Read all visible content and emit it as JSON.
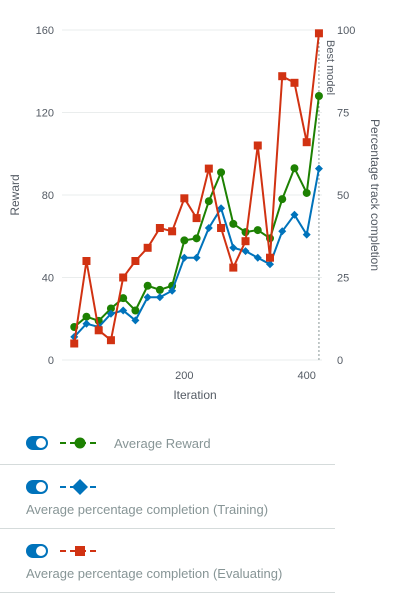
{
  "chart_data": {
    "type": "line",
    "xlabel": "Iteration",
    "ylabel_left": "Reward",
    "ylabel_right": "Percentage track completion",
    "xlim": [
      0,
      425
    ],
    "ylim_left": [
      0,
      160
    ],
    "ylim_right": [
      0,
      100
    ],
    "x_ticks": [
      200,
      400
    ],
    "y_ticks_left": [
      0,
      40,
      80,
      120,
      160
    ],
    "y_ticks_right": [
      0,
      25,
      50,
      75,
      100
    ],
    "grid": "horizontal",
    "annotation": {
      "label": "Best model",
      "x": 420
    },
    "x": [
      20,
      40,
      60,
      80,
      100,
      120,
      140,
      160,
      180,
      200,
      220,
      240,
      260,
      280,
      300,
      320,
      340,
      360,
      380,
      400,
      420
    ],
    "series": [
      {
        "name": "Average Reward",
        "axis": "left",
        "color": "#1d8102",
        "marker": "circle",
        "values": [
          16,
          21,
          19,
          25,
          30,
          24,
          36,
          34,
          36,
          58,
          59,
          77,
          91,
          66,
          62,
          63,
          59,
          78,
          93,
          81,
          128
        ]
      },
      {
        "name": "Average percentage completion (Training)",
        "axis": "right",
        "color": "#0073bb",
        "marker": "diamond",
        "values": [
          7,
          11,
          10,
          14,
          15,
          12,
          19,
          19,
          21,
          31,
          31,
          40,
          46,
          34,
          33,
          31,
          29,
          39,
          44,
          38,
          58
        ]
      },
      {
        "name": "Average percentage completion (Evaluating)",
        "axis": "right",
        "color": "#d13212",
        "marker": "square",
        "values": [
          5,
          30,
          9,
          6,
          25,
          30,
          34,
          40,
          39,
          49,
          43,
          58,
          40,
          28,
          36,
          65,
          31,
          86,
          84,
          66,
          99
        ]
      }
    ]
  },
  "legend": {
    "items": [
      {
        "label": "Average Reward",
        "color": "#1d8102",
        "marker": "circle"
      },
      {
        "label": "Average percentage completion (Training)",
        "color": "#0073bb",
        "marker": "diamond"
      },
      {
        "label": "Average percentage completion (Evaluating)",
        "color": "#d13212",
        "marker": "square"
      }
    ]
  }
}
